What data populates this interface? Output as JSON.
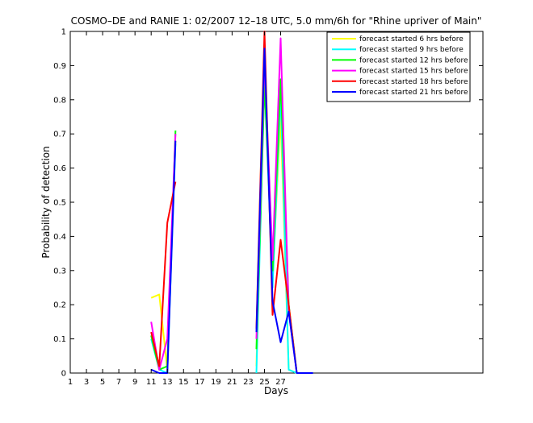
{
  "chart_data": {
    "type": "line",
    "title": "COSMO–DE and RANIE 1: 02/2007 12–18 UTC, 5.0 mm/6h for \"Rhine upriver of Main\"",
    "xlabel": "Days",
    "ylabel": "Probability of detection",
    "xlim": [
      1,
      52
    ],
    "ylim": [
      0,
      1
    ],
    "x_ticks": [
      1,
      3,
      5,
      7,
      9,
      11,
      13,
      15,
      17,
      19,
      21,
      23,
      25,
      27
    ],
    "y_ticks": [
      0,
      0.1,
      0.2,
      0.3,
      0.4,
      0.5,
      0.6,
      0.7,
      0.8,
      0.9,
      1
    ],
    "x_tick_labels": [
      "1",
      "3",
      "5",
      "7",
      "9",
      "11",
      "13",
      "15",
      "17",
      "19",
      "21",
      "23",
      "25",
      "27"
    ],
    "y_tick_labels": [
      "0",
      "0.1",
      "0.2",
      "0.3",
      "0.4",
      "0.5",
      "0.6",
      "0.7",
      "0.8",
      "0.9",
      "1"
    ],
    "grid": false,
    "legend_position": "top-right",
    "series": [
      {
        "name": "forecast started 6 hrs before",
        "color": "#ffff00",
        "segments": [
          [
            [
              11,
              0.22
            ],
            [
              12,
              0.23
            ],
            [
              13,
              0.01
            ],
            [
              14,
              0.68
            ]
          ],
          [
            [
              24,
              0.02
            ],
            [
              25,
              0.9
            ],
            [
              26,
              0.28
            ],
            [
              27,
              0.75
            ],
            [
              28,
              0.01
            ],
            [
              29,
              0.0
            ]
          ]
        ]
      },
      {
        "name": "forecast started 9 hrs before",
        "color": "#00ffff",
        "segments": [
          [
            [
              11,
              0.1
            ],
            [
              12,
              0.01
            ],
            [
              13,
              0.0
            ],
            [
              14,
              0.67
            ]
          ],
          [
            [
              24,
              0.0
            ],
            [
              25,
              0.86
            ],
            [
              26,
              0.25
            ],
            [
              27,
              0.82
            ],
            [
              28,
              0.01
            ],
            [
              29,
              0.0
            ],
            [
              30,
              0.0
            ],
            [
              31,
              0.0
            ]
          ]
        ]
      },
      {
        "name": "forecast started 12 hrs before",
        "color": "#00ff00",
        "segments": [
          [
            [
              11,
              0.11
            ],
            [
              12,
              0.01
            ],
            [
              13,
              0.02
            ],
            [
              14,
              0.71
            ]
          ],
          [
            [
              24,
              0.07
            ],
            [
              25,
              0.85
            ],
            [
              26,
              0.3
            ],
            [
              27,
              0.86
            ],
            [
              28,
              0.2
            ],
            [
              29,
              0.0
            ]
          ]
        ]
      },
      {
        "name": "forecast started 15 hrs before",
        "color": "#ff00ff",
        "segments": [
          [
            [
              11,
              0.15
            ],
            [
              12,
              0.01
            ],
            [
              13,
              0.1
            ],
            [
              14,
              0.7
            ]
          ],
          [
            [
              24,
              0.1
            ],
            [
              25,
              0.92
            ],
            [
              26,
              0.33
            ],
            [
              27,
              0.98
            ],
            [
              28,
              0.18
            ],
            [
              29,
              0.0
            ]
          ]
        ]
      },
      {
        "name": "forecast started 18 hrs before",
        "color": "#ff0000",
        "segments": [
          [
            [
              11,
              0.12
            ],
            [
              12,
              0.02
            ],
            [
              13,
              0.44
            ],
            [
              14,
              0.56
            ]
          ],
          [
            [
              24,
              0.13
            ],
            [
              25,
              1.0
            ],
            [
              26,
              0.17
            ],
            [
              27,
              0.39
            ],
            [
              28,
              0.2
            ],
            [
              29,
              0.0
            ]
          ]
        ]
      },
      {
        "name": "forecast started 21 hrs before",
        "color": "#0000ff",
        "segments": [
          [
            [
              11,
              0.01
            ],
            [
              12,
              0.0
            ],
            [
              13,
              0.0
            ],
            [
              14,
              0.68
            ]
          ],
          [
            [
              24,
              0.12
            ],
            [
              25,
              0.95
            ],
            [
              26,
              0.21
            ],
            [
              27,
              0.09
            ],
            [
              28,
              0.18
            ],
            [
              29,
              0.0
            ],
            [
              30,
              0.0
            ],
            [
              31,
              0.0
            ]
          ]
        ]
      }
    ]
  }
}
